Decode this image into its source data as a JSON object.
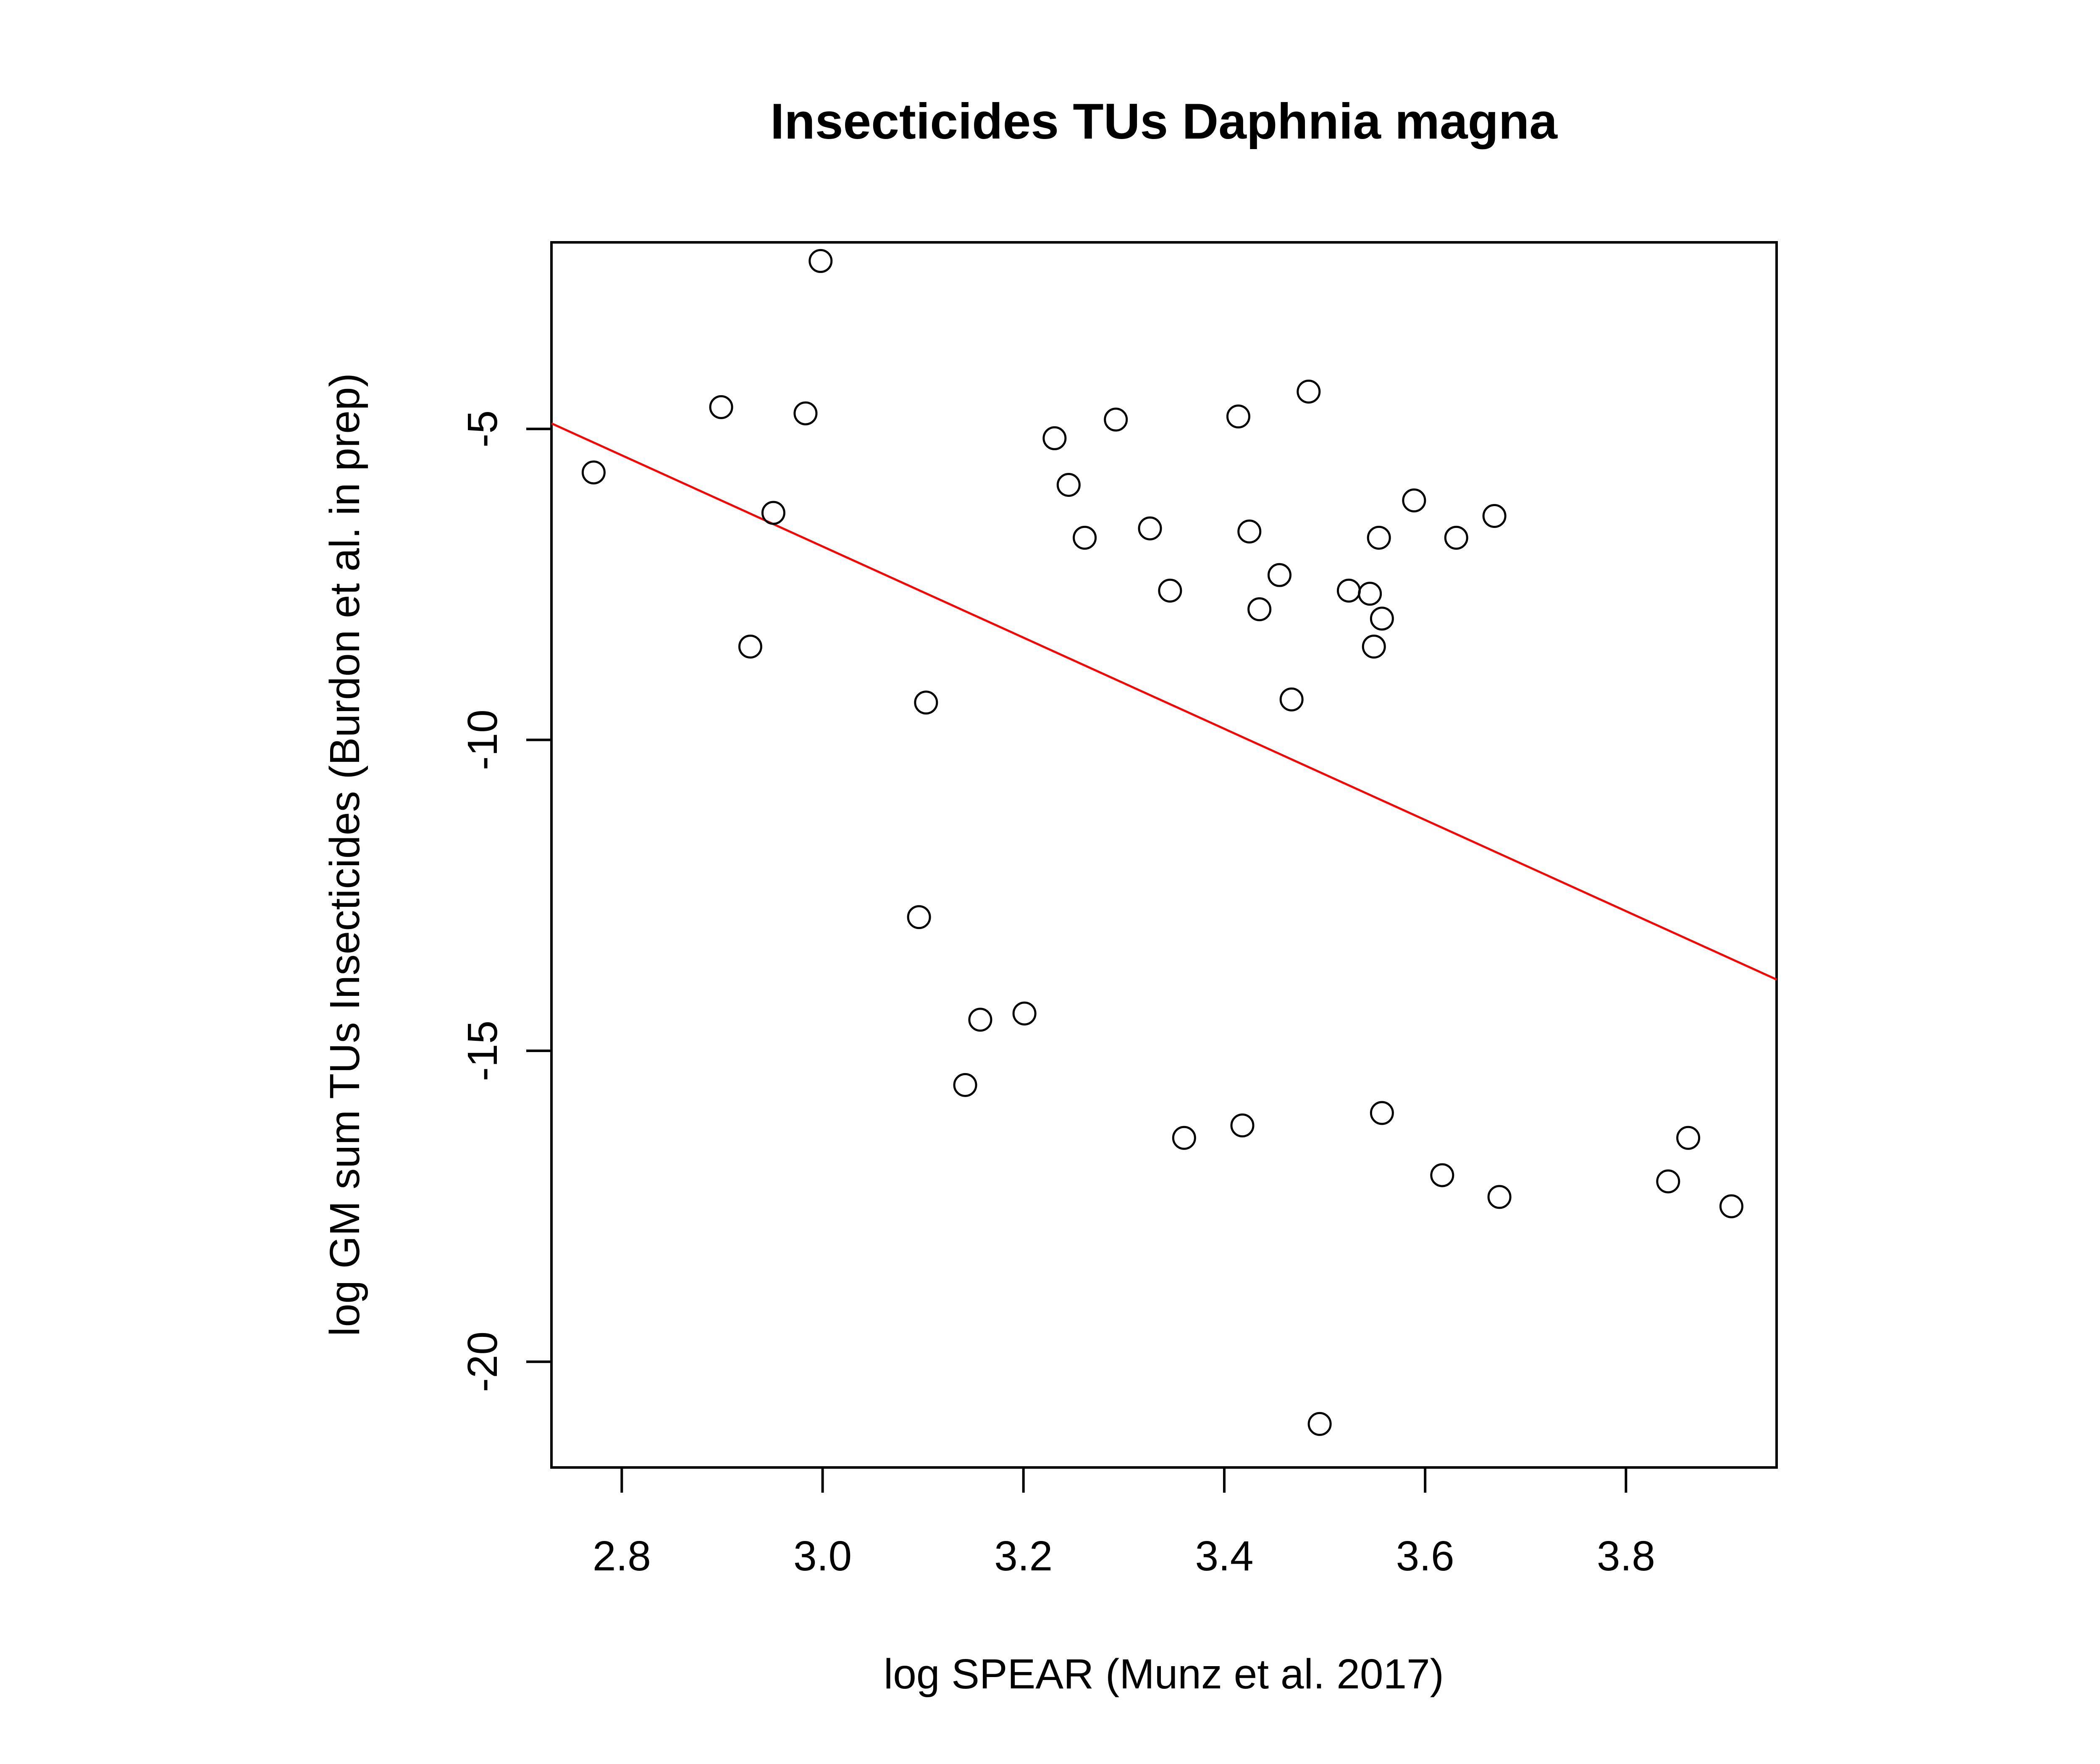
{
  "chart_data": {
    "type": "scatter",
    "title": "Insecticides TUs Daphnia magna",
    "xlabel": "log SPEAR (Munz et al. 2017)",
    "ylabel": "log GM sum TUs Insecticides (Burdon et al. in prep)",
    "xlim": [
      2.73,
      3.95
    ],
    "ylim": [
      -21.7,
      -2.0
    ],
    "x_ticks": [
      2.8,
      3.0,
      3.2,
      3.4,
      3.6,
      3.8
    ],
    "x_tick_labels": [
      "2.8",
      "3.0",
      "3.2",
      "3.4",
      "3.6",
      "3.8"
    ],
    "y_ticks": [
      -20,
      -15,
      -10,
      -5
    ],
    "y_tick_labels": [
      "-20",
      "-15",
      "-10",
      "-5"
    ],
    "point_color": "#000000",
    "line_color": "#ff0000",
    "fit_line": {
      "slope": -7.33,
      "intercept": 15.1
    },
    "points": [
      [
        2.772,
        -5.7
      ],
      [
        2.899,
        -4.65
      ],
      [
        2.928,
        -8.5
      ],
      [
        2.951,
        -6.35
      ],
      [
        2.983,
        -4.75
      ],
      [
        2.998,
        -2.3
      ],
      [
        3.096,
        -12.85
      ],
      [
        3.103,
        -9.4
      ],
      [
        3.142,
        -15.55
      ],
      [
        3.157,
        -14.5
      ],
      [
        3.201,
        -14.4
      ],
      [
        3.231,
        -5.15
      ],
      [
        3.245,
        -5.9
      ],
      [
        3.261,
        -6.75
      ],
      [
        3.292,
        -4.85
      ],
      [
        3.326,
        -6.6
      ],
      [
        3.346,
        -7.6
      ],
      [
        3.36,
        -16.4
      ],
      [
        3.414,
        -4.8
      ],
      [
        3.418,
        -16.2
      ],
      [
        3.425,
        -6.65
      ],
      [
        3.435,
        -7.9
      ],
      [
        3.455,
        -7.35
      ],
      [
        3.467,
        -9.35
      ],
      [
        3.484,
        -4.4
      ],
      [
        3.495,
        -21.0
      ],
      [
        3.524,
        -7.6
      ],
      [
        3.545,
        -7.65
      ],
      [
        3.549,
        -8.5
      ],
      [
        3.554,
        -6.75
      ],
      [
        3.557,
        -8.05
      ],
      [
        3.557,
        -16.0
      ],
      [
        3.589,
        -6.15
      ],
      [
        3.617,
        -17.0
      ],
      [
        3.631,
        -6.75
      ],
      [
        3.669,
        -6.4
      ],
      [
        3.674,
        -17.35
      ],
      [
        3.842,
        -17.1
      ],
      [
        3.862,
        -16.4
      ],
      [
        3.905,
        -17.5
      ]
    ]
  }
}
